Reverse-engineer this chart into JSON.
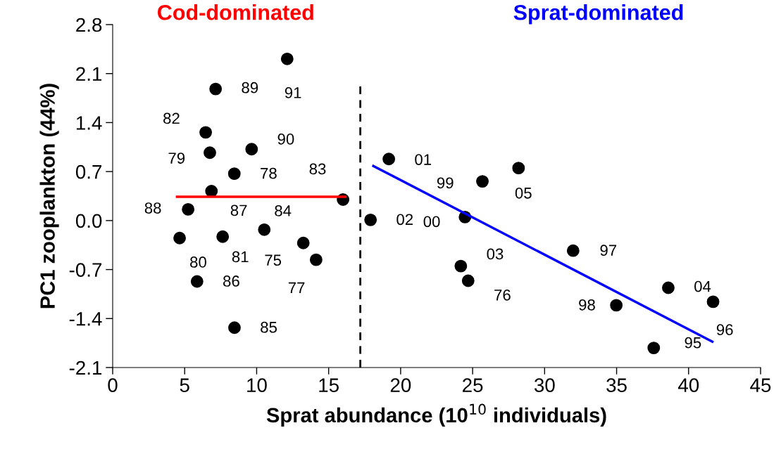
{
  "chart_data": {
    "type": "scatter",
    "xlabel": "Sprat abundance (10$^{10}$ individuals)",
    "ylabel": "PC1 zooplankton (44%)",
    "xlim": [
      0,
      45
    ],
    "xticks": [
      0,
      5,
      10,
      15,
      20,
      25,
      30,
      35,
      40,
      45
    ],
    "ylim": [
      -2.1,
      2.8
    ],
    "yticks": [
      -2.1,
      -1.4,
      -0.7,
      {
        "value": 0.0,
        "label": "0.0"
      },
      0.7,
      1.4,
      2.1,
      2.8
    ],
    "grid": false,
    "series": [
      {
        "marker": "circle",
        "color": "#000000",
        "x": [
          12.12,
          7.15,
          6.46,
          6.75,
          9.65,
          8.45,
          6.86,
          16.0,
          5.24,
          10.53,
          4.65,
          7.64,
          13.24,
          14.13,
          5.86,
          8.46,
          17.91,
          19.18,
          25.68,
          28.19,
          24.47,
          31.98,
          24.18,
          24.69,
          34.98,
          38.59,
          41.7,
          37.58
        ],
        "values": [
          2.31,
          1.88,
          1.26,
          0.97,
          1.02,
          0.67,
          0.42,
          0.3,
          0.16,
          -0.13,
          -0.25,
          -0.23,
          -0.32,
          -0.56,
          -0.87,
          -1.53,
          0.01,
          0.88,
          0.56,
          0.75,
          0.05,
          -0.43,
          -0.65,
          -0.86,
          -1.21,
          -0.96,
          -1.16,
          -1.82
        ]
      },
      {
        "type": "line",
        "marker": "none",
        "color": "#ff0000",
        "line_style": "solid",
        "x": [
          4.47,
          16.17
        ],
        "values": [
          0.34,
          0.34
        ]
      },
      {
        "type": "line",
        "marker": "none",
        "color": "#0000ff",
        "line_style": "solid",
        "x": [
          18.11,
          41.65
        ],
        "values": [
          0.78,
          -1.73
        ]
      }
    ],
    "ref_lines": [
      {
        "axis": "x",
        "value": 17.2,
        "color": "#000000",
        "line_style": "dashed"
      }
    ],
    "annotations": [
      "Cod-dominated",
      "Sprat-dominated",
      {
        "text": "91",
        "x": 12.12,
        "y": 2.31
      },
      {
        "text": "89",
        "x": 7.15,
        "y": 1.88
      },
      {
        "text": "82",
        "x": 6.46,
        "y": 1.26
      },
      {
        "text": "79",
        "x": 6.75,
        "y": 0.97
      },
      {
        "text": "90",
        "x": 9.65,
        "y": 1.02
      },
      {
        "text": "78",
        "x": 8.45,
        "y": 0.67
      },
      {
        "text": "87",
        "x": 6.86,
        "y": 0.42
      },
      {
        "text": "83",
        "x": 16.0,
        "y": 0.3
      },
      {
        "text": "88",
        "x": 5.24,
        "y": 0.16
      },
      {
        "text": "84",
        "x": 10.53,
        "y": -0.13
      },
      {
        "text": "80",
        "x": 4.65,
        "y": -0.25
      },
      {
        "text": "81",
        "x": 7.64,
        "y": -0.23
      },
      {
        "text": "75",
        "x": 13.24,
        "y": -0.32
      },
      {
        "text": "77",
        "x": 14.13,
        "y": -0.56
      },
      {
        "text": "86",
        "x": 5.86,
        "y": -0.87
      },
      {
        "text": "85",
        "x": 8.46,
        "y": -1.53
      },
      {
        "text": "02",
        "x": 17.91,
        "y": 0.01
      },
      {
        "text": "01",
        "x": 19.18,
        "y": 0.88
      },
      {
        "text": "99",
        "x": 25.68,
        "y": 0.56
      },
      {
        "text": "05",
        "x": 28.19,
        "y": 0.75
      },
      {
        "text": "00",
        "x": 24.47,
        "y": 0.05
      },
      {
        "text": "97",
        "x": 31.98,
        "y": -0.43
      },
      {
        "text": "03",
        "x": 24.18,
        "y": -0.65
      },
      {
        "text": "76",
        "x": 24.69,
        "y": -0.86
      },
      {
        "text": "98",
        "x": 34.98,
        "y": -1.21
      },
      {
        "text": "04",
        "x": 38.59,
        "y": -0.96
      },
      {
        "text": "96",
        "x": 41.7,
        "y": -1.16
      },
      {
        "text": "95",
        "x": 37.58,
        "y": -1.82
      }
    ]
  }
}
